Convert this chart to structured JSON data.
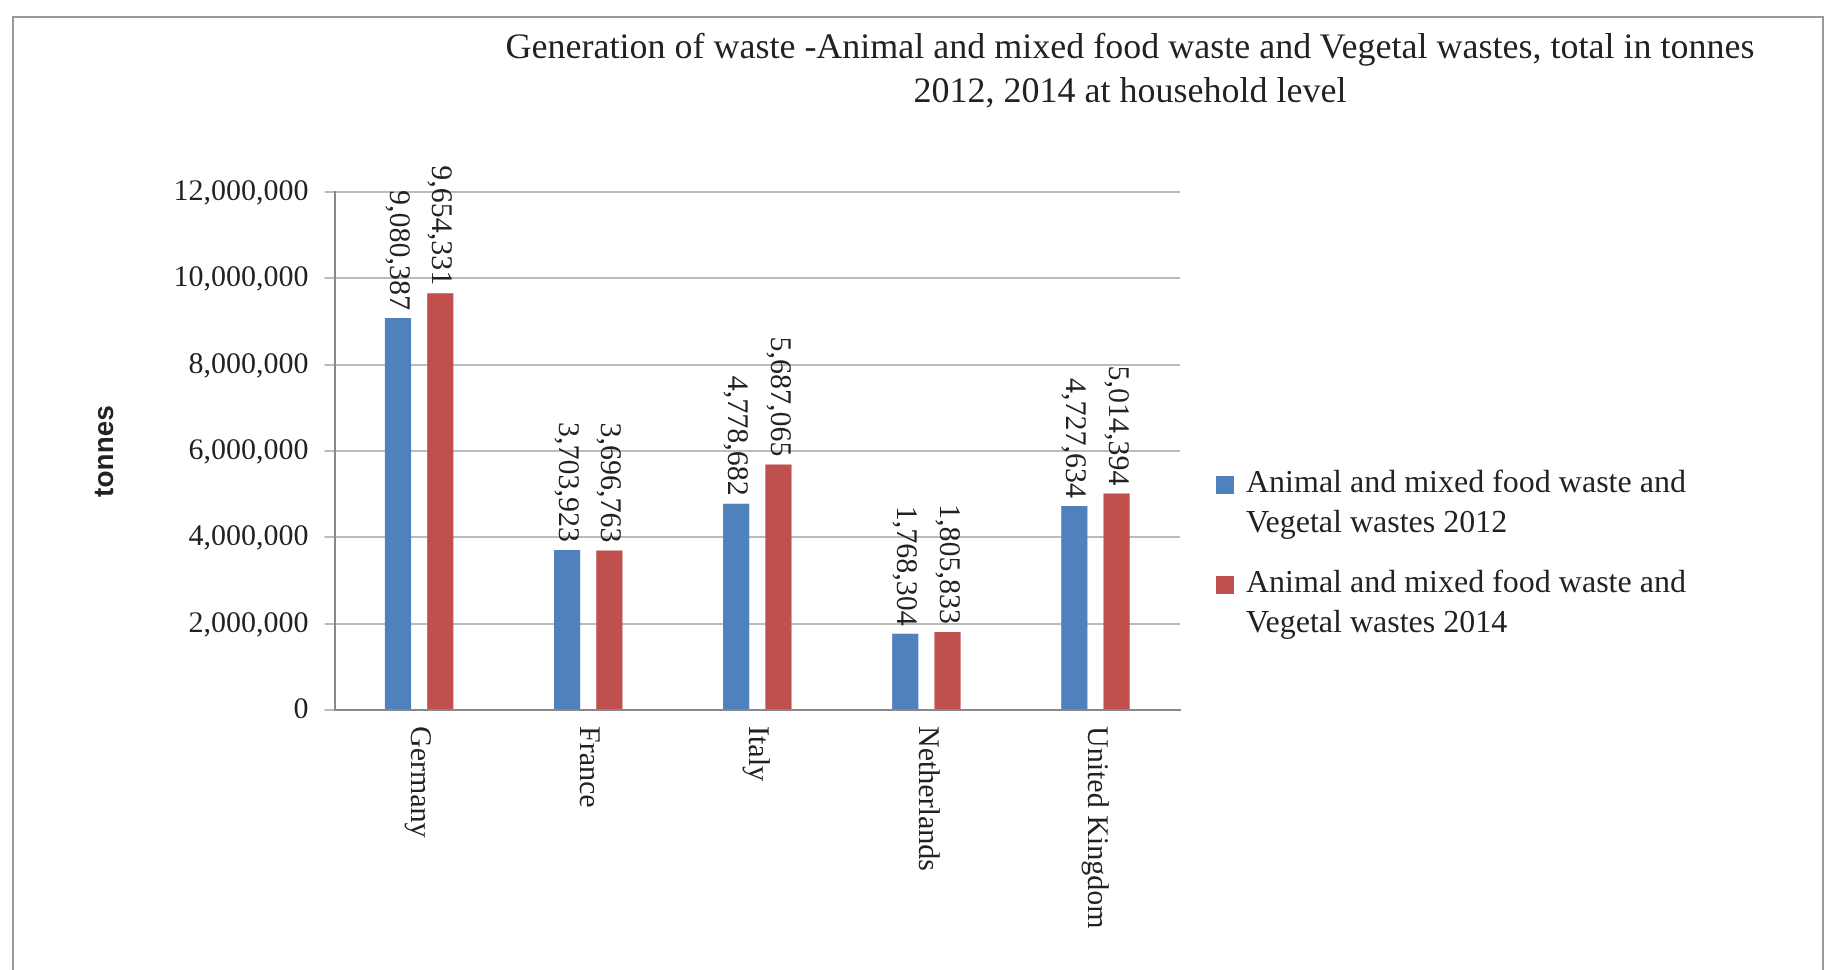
{
  "chart_data": {
    "type": "bar",
    "title": "Generation of waste -Animal and mixed food waste and Vegetal wastes, total in tonnes 2012, 2014 at household level",
    "ylabel": "tonnes",
    "categories": [
      "Germany",
      "France",
      "Italy",
      "Netherlands",
      "United Kingdom"
    ],
    "series": [
      {
        "name": "Animal and mixed food waste and Vegetal wastes 2012",
        "color": "#4f81bd",
        "values": [
          9080387,
          3703923,
          4778682,
          1768304,
          4727634
        ],
        "value_labels": [
          "9,080,387",
          "3,703,923",
          "4,778,682",
          "1,768,304",
          "4,727,634"
        ]
      },
      {
        "name": "Animal and mixed food waste and Vegetal wastes 2014",
        "color": "#c0504d",
        "values": [
          9654331,
          3696763,
          5687065,
          1805833,
          5014394
        ],
        "value_labels": [
          "9,654,331",
          "3,696,763",
          "5,687,065",
          "1,805,833",
          "5,014,394"
        ]
      }
    ],
    "ylim": [
      0,
      12000000
    ],
    "yticks": [
      {
        "value": 0,
        "label": "0"
      },
      {
        "value": 2000000,
        "label": "2,000,000"
      },
      {
        "value": 4000000,
        "label": "4,000,000"
      },
      {
        "value": 6000000,
        "label": "6,000,000"
      },
      {
        "value": 8000000,
        "label": "8,000,000"
      },
      {
        "value": 10000000,
        "label": "10,000,000"
      },
      {
        "value": 12000000,
        "label": "12,000,000"
      }
    ],
    "grid": "y",
    "legend": "right"
  }
}
